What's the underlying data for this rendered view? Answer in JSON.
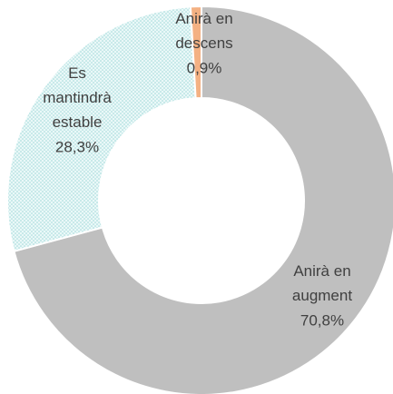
{
  "chart_data": {
    "type": "donut",
    "categories": [
      "Anirà en\naugment",
      "Es\nmantindrà\nestable",
      "Anirà en\ndescens"
    ],
    "values": [
      70.8,
      28.3,
      0.9
    ],
    "value_labels": [
      "70,8%",
      "28,3%",
      "0,9%"
    ],
    "colors": [
      "#bfbfbf",
      "#d4f0f0",
      "#f4b183"
    ]
  }
}
